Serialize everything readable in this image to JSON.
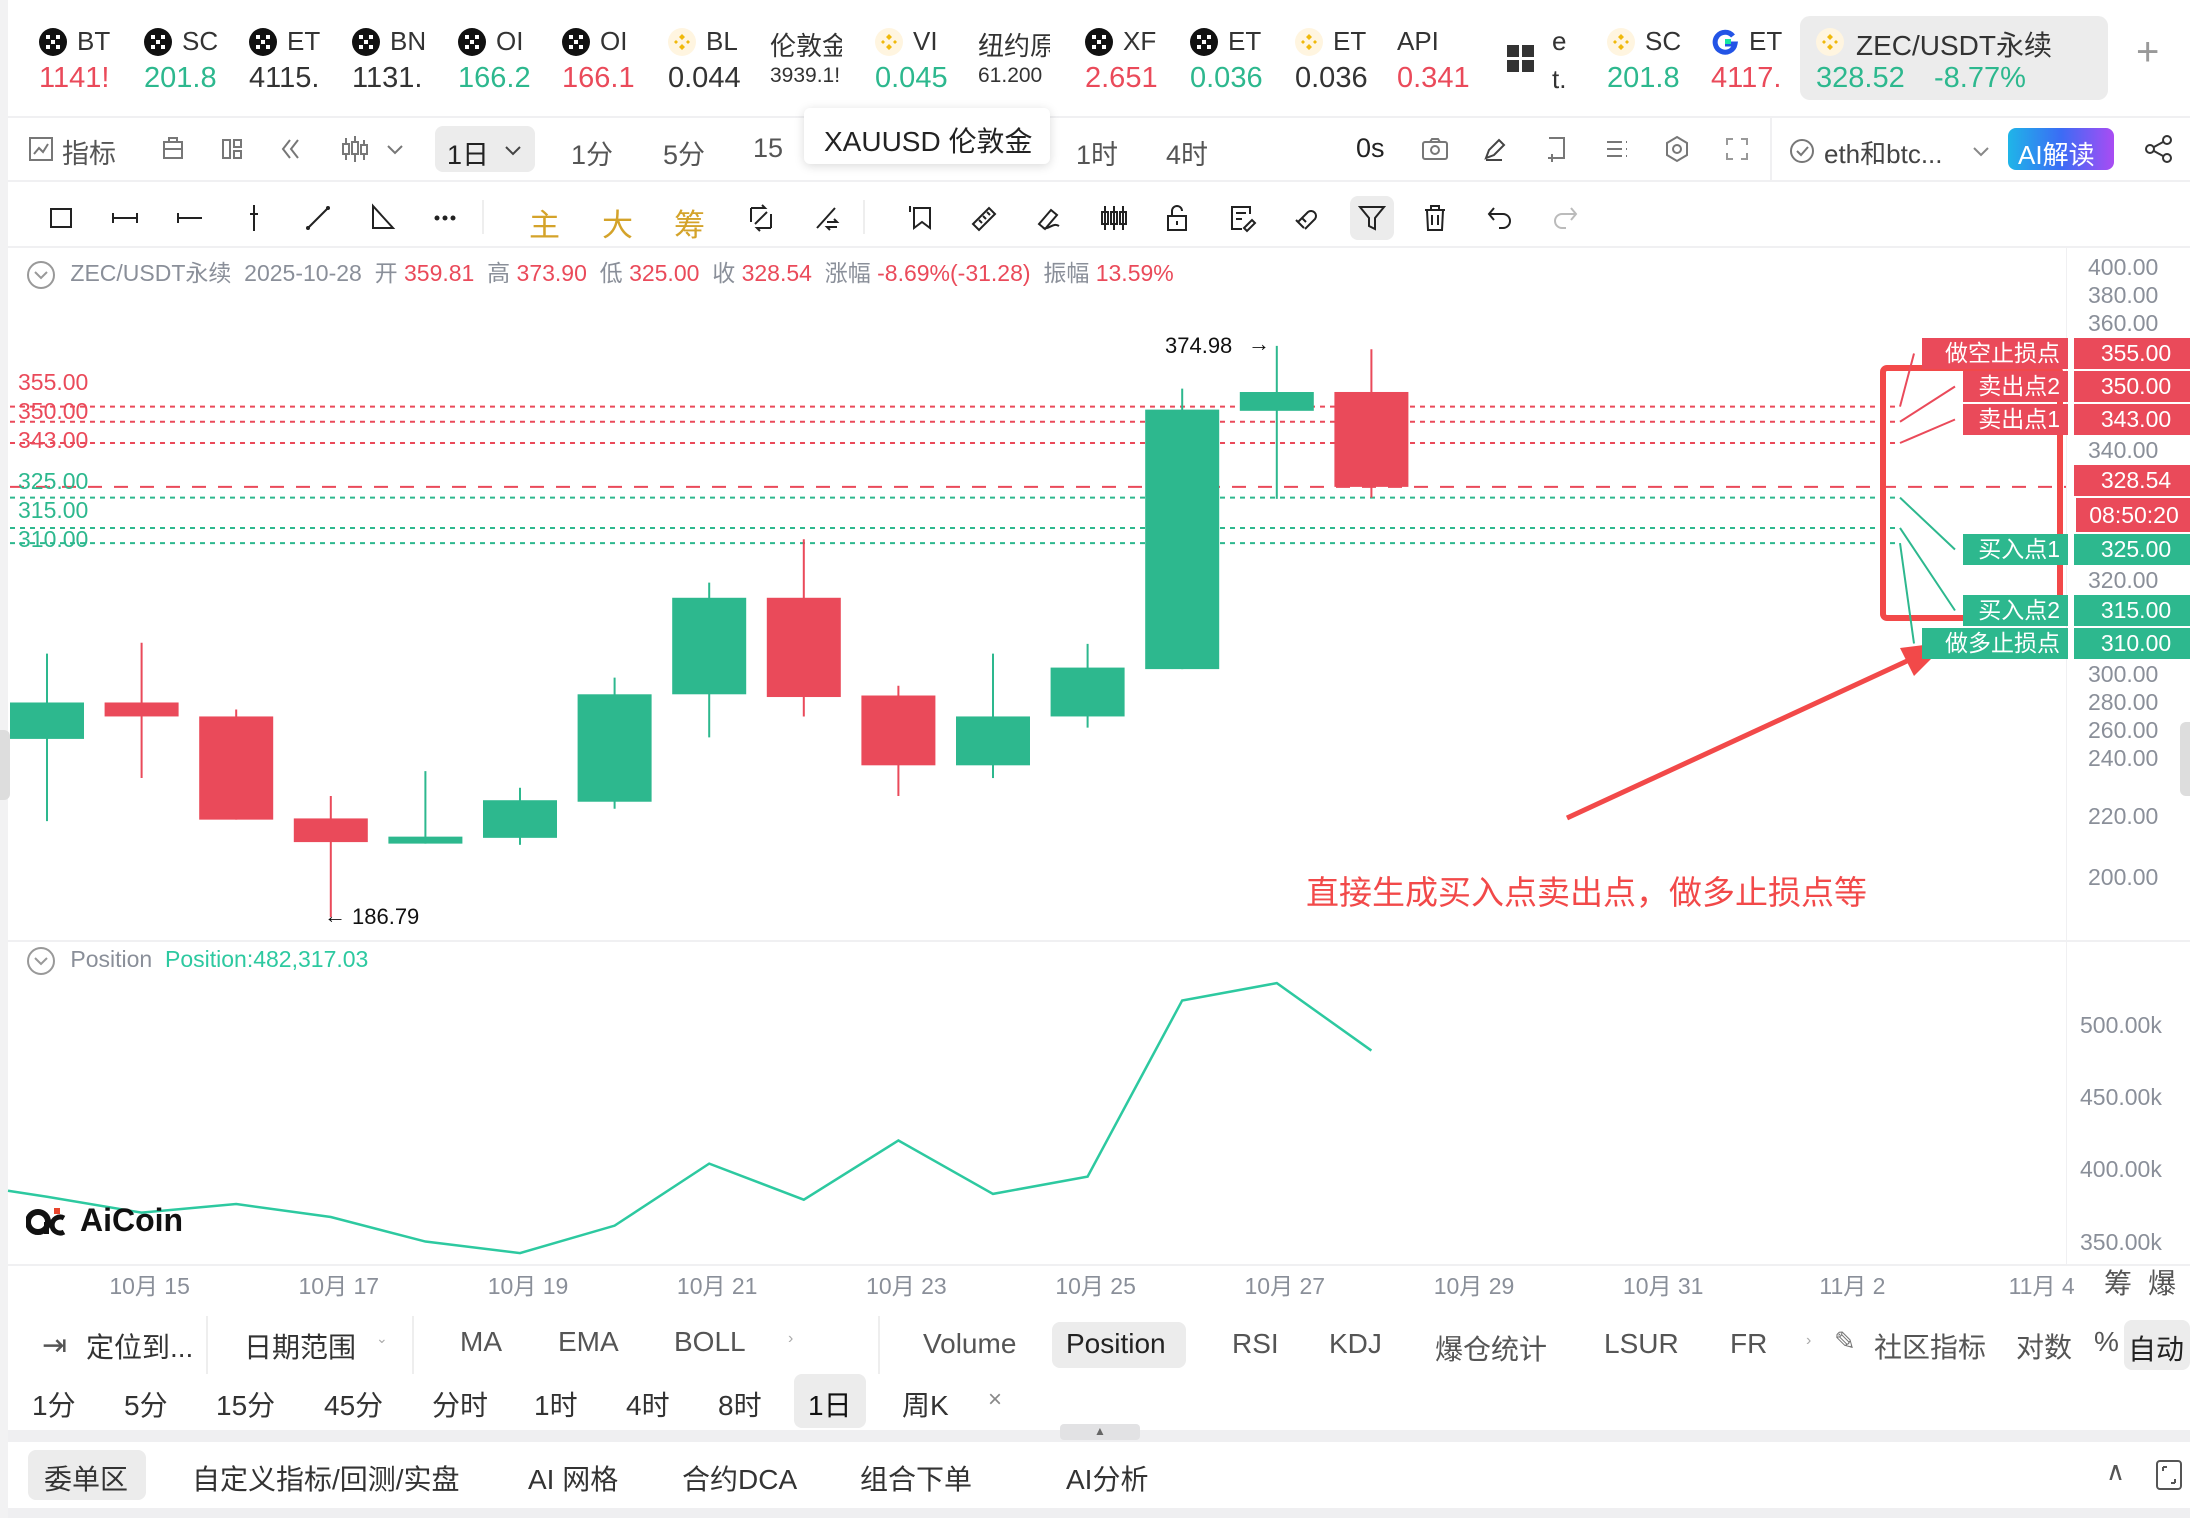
{
  "colors": {
    "up": "#2db88e",
    "down": "#ea4a5a",
    "accent_red": "#f24949"
  },
  "tickers": [
    {
      "icon": "okx",
      "name": "BT",
      "price": "1141!",
      "color": "down"
    },
    {
      "icon": "okx",
      "name": "SC",
      "price": "201.8",
      "color": "up"
    },
    {
      "icon": "okx",
      "name": "ET",
      "price": "4115.",
      "color": "flat"
    },
    {
      "icon": "okx",
      "name": "BN",
      "price": "1131.",
      "color": "flat"
    },
    {
      "icon": "okx",
      "name": "OI",
      "price": "166.2",
      "color": "up"
    },
    {
      "icon": "okx",
      "name": "OI",
      "price": "166.1",
      "color": "down"
    },
    {
      "icon": "binance",
      "name": "BL",
      "price": "0.044",
      "color": "flat"
    },
    {
      "icon": "none",
      "name": "伦敦金",
      "price": "3939.1!",
      "color": "flat",
      "small": true
    },
    {
      "icon": "binance",
      "name": "VI",
      "price": "0.045",
      "color": "up"
    },
    {
      "icon": "none",
      "name": "纽约原",
      "price": "61.200",
      "color": "flat",
      "small": true
    },
    {
      "icon": "okx",
      "name": "XF",
      "price": "2.651",
      "color": "down"
    },
    {
      "icon": "okx",
      "name": "ET",
      "price": "0.036",
      "color": "up"
    },
    {
      "icon": "binance",
      "name": "ET",
      "price": "0.036",
      "color": "flat"
    },
    {
      "icon": "none",
      "name": "API",
      "price": "0.341",
      "color": "down"
    },
    {
      "icon": "grid",
      "name": "e",
      "price": "t.",
      "color": "flat",
      "small": true
    },
    {
      "icon": "binance",
      "name": "SC",
      "price": "201.8",
      "color": "up"
    },
    {
      "icon": "gate",
      "name": "ET",
      "price": "4117.",
      "color": "down"
    }
  ],
  "active_ticker": {
    "name": "ZEC/USDT永续",
    "price": "328.52",
    "change": "-8.77%"
  },
  "tooltip": "XAUUSD 伦敦金",
  "toolbar": {
    "indicator_label": "指标",
    "interval_selected": "1日",
    "intervals": [
      "1分",
      "5分",
      "15",
      "1时",
      "4时"
    ],
    "countdown_label": "0s",
    "layout_label": "eth和btc...",
    "ai_label": "AI解读"
  },
  "drawing_tools": [
    "rectangle",
    "horizontal-segment",
    "horizontal-ray",
    "vertical-line",
    "trend-line",
    "triangle",
    "more",
    "主",
    "大",
    "筹",
    "cycle",
    "cross-arrows",
    "flag",
    "ruler",
    "eraser",
    "candles",
    "unlock",
    "edit-note",
    "magnet",
    "filter",
    "trash",
    "undo",
    "redo"
  ],
  "legend": {
    "symbol": "ZEC/USDT永续",
    "date": "2025-10-28",
    "open_label": "开",
    "open": "359.81",
    "high_label": "高",
    "high": "373.90",
    "low_label": "低",
    "low": "325.00",
    "close_label": "收",
    "close": "328.54",
    "change_label": "涨幅",
    "change": "-8.69%(-31.28)",
    "amp_label": "振幅",
    "amp": "13.59%"
  },
  "chart_data": [
    {
      "type": "candlestick",
      "x": [
        "10-14",
        "10-15",
        "10-16",
        "10-17",
        "10-18",
        "10-19",
        "10-20",
        "10-21",
        "10-22",
        "10-23",
        "10-24",
        "10-25",
        "10-26",
        "10-27",
        "10-28"
      ],
      "ohlc": [
        [
          245.5,
          273.6,
          218.4,
          257.5
        ],
        [
          257.5,
          277.2,
          232.6,
          252.9
        ],
        [
          252.9,
          255.2,
          218.9,
          218.9
        ],
        [
          219.3,
          226.7,
          186.79,
          211.5
        ],
        [
          211.0,
          234.9,
          211.0,
          213.3
        ],
        [
          212.9,
          229.4,
          210.6,
          225.3
        ],
        [
          224.8,
          265.7,
          222.5,
          260.2
        ],
        [
          260.2,
          297.0,
          246.0,
          292.0
        ],
        [
          292.0,
          311.3,
          252.9,
          259.3
        ],
        [
          259.8,
          263.0,
          226.7,
          236.8
        ],
        [
          236.8,
          273.6,
          232.6,
          252.9
        ],
        [
          252.9,
          276.8,
          249.2,
          269.0
        ],
        [
          268.5,
          360.9,
          268.5,
          354.0
        ],
        [
          353.6,
          374.98,
          324.6,
          359.8
        ],
        [
          359.81,
          373.9,
          325.0,
          328.54
        ]
      ],
      "ylim": [
        190,
        405
      ],
      "yticks": [
        "400.00",
        "380.00",
        "360.00",
        "340.00",
        "320.00",
        "300.00",
        "280.00",
        "260.00",
        "240.00",
        "220.00",
        "200.00"
      ],
      "high_marker": "374.98",
      "low_marker": "186.79",
      "last_price": "328.54",
      "countdown": "08:50:20"
    },
    {
      "type": "line",
      "name": "Position",
      "value_label": "Position:482,317.03",
      "x": [
        "10-14",
        "10-15",
        "10-16",
        "10-17",
        "10-18",
        "10-19",
        "10-20",
        "10-21",
        "10-22",
        "10-23",
        "10-24",
        "10-25",
        "10-26",
        "10-27",
        "10-28"
      ],
      "values_k": [
        381,
        370,
        376,
        367,
        350,
        342,
        361,
        404,
        379,
        420,
        383,
        395,
        517,
        529,
        482.3
      ],
      "yticks": [
        "500.00k",
        "450.00k",
        "400.00k",
        "350.00k"
      ]
    }
  ],
  "x_axis": [
    "10月 15",
    "10月 17",
    "10月 19",
    "10月 21",
    "10月 23",
    "10月 25",
    "10月 27",
    "10月 29",
    "10月 31",
    "11月 2",
    "11月 4"
  ],
  "x_axis_right": [
    "筹",
    "爆"
  ],
  "trade_levels": [
    {
      "label": "卖出点2",
      "price": "350.00",
      "side": "sell"
    },
    {
      "label": "做空止损点",
      "price": "355.00",
      "side": "sell"
    },
    {
      "label": "卖出点1",
      "price": "343.00",
      "side": "sell"
    },
    {
      "label": "买入点2",
      "price": "315.00",
      "side": "buy"
    },
    {
      "label": "买入点1",
      "price": "325.00",
      "side": "buy"
    },
    {
      "label": "做多止损点",
      "price": "310.00",
      "side": "buy"
    }
  ],
  "annotation": "直接生成买入点卖出点，做多止损点等",
  "logo": "AiCoin",
  "bottom_bar": {
    "locate": "定位到...",
    "date_range": "日期范围",
    "main_indicators": [
      "MA",
      "EMA",
      "BOLL"
    ],
    "sub_indicators": [
      "Volume",
      "Position",
      "RSI",
      "KDJ",
      "爆仓统计",
      "LSUR",
      "FR"
    ],
    "sub_selected": "Position",
    "community": "社区指标",
    "log": "对数",
    "percent": "%",
    "auto": "自动"
  },
  "interval_bar": {
    "items": [
      "1分",
      "5分",
      "15分",
      "45分",
      "分时",
      "1时",
      "4时",
      "8时",
      "1日",
      "周K"
    ],
    "selected": "1日",
    "close": "×"
  },
  "bottom_tabs": {
    "items": [
      "委单区",
      "自定义指标/回测/实盘",
      "AI 网格",
      "合约DCA",
      "组合下单",
      "AI分析"
    ],
    "selected": "委单区"
  }
}
